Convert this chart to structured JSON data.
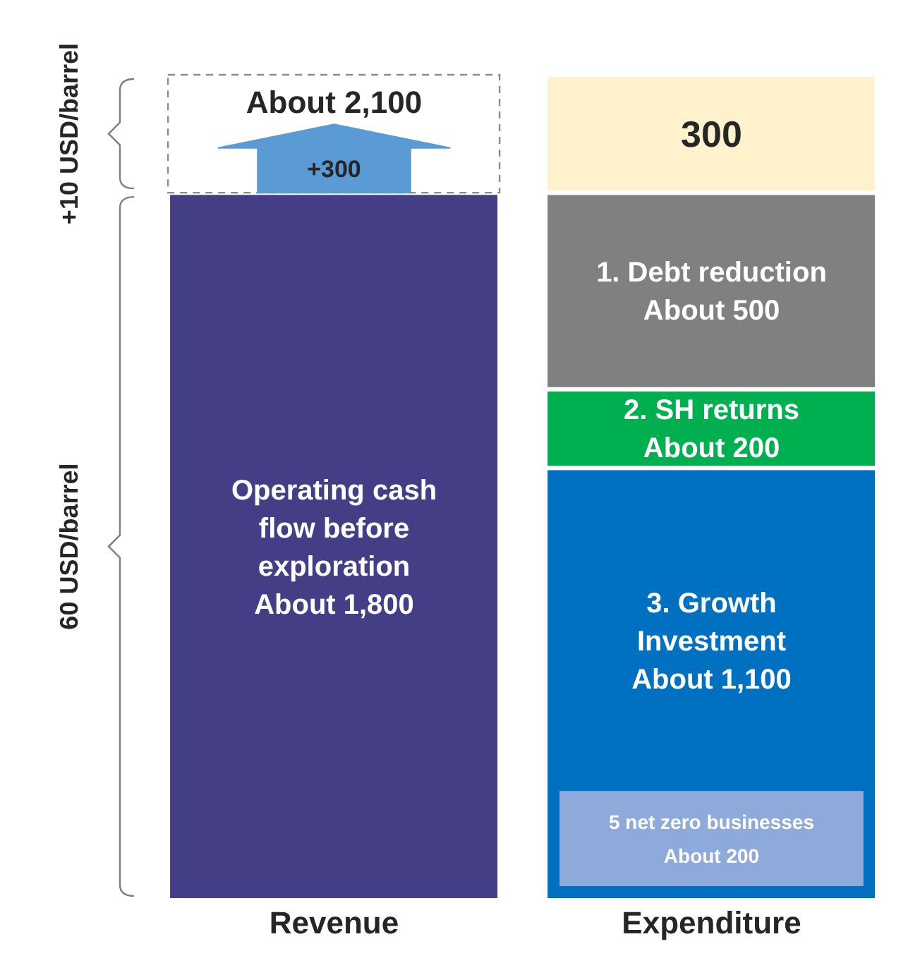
{
  "chart_data": {
    "type": "bar",
    "stacked": true,
    "categories": [
      "Revenue",
      "Expenditure"
    ],
    "series": [
      {
        "name": "Operating cash flow before exploration",
        "color": "#433e85",
        "values": [
          1800,
          null
        ],
        "value_labels": [
          "About 1,800",
          null
        ]
      },
      {
        "color": "#ffffff",
        "line_style": "dashed",
        "values": [
          300,
          null
        ],
        "value_labels": [
          "+300",
          null
        ]
      },
      {
        "name": "3. Growth Investment",
        "color": "#0070c0",
        "values": [
          null,
          1100
        ],
        "value_labels": [
          null,
          "About 1,100"
        ]
      },
      {
        "name": "2. SH returns",
        "color": "#00b050",
        "values": [
          null,
          200
        ],
        "value_labels": [
          null,
          "About 200"
        ]
      },
      {
        "name": "1. Debt reduction",
        "color": "#808080",
        "values": [
          null,
          500
        ],
        "value_labels": [
          null,
          "About 500"
        ]
      },
      {
        "color": "#fff2cc",
        "values": [
          null,
          300
        ],
        "value_labels": [
          null,
          "300"
        ]
      }
    ],
    "totals": [
      "About 2,100",
      null
    ],
    "annotations": [
      "60 USD/barrel",
      "+10 USD/barrel",
      "5 net zero businesses About 200"
    ],
    "tick_labels": "x",
    "grid": false,
    "legend": false
  }
}
